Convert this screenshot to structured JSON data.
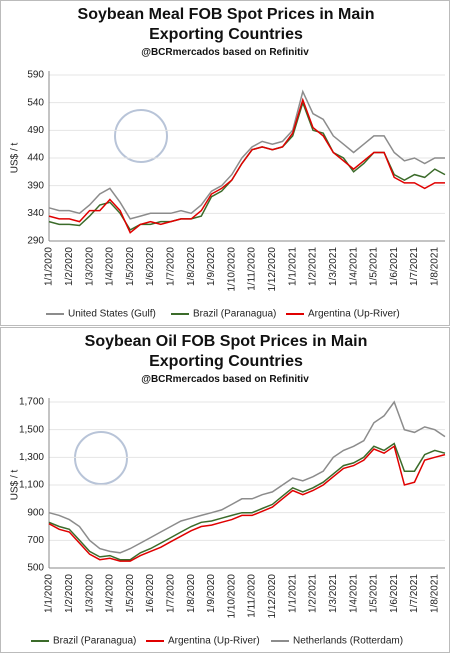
{
  "chart_data": [
    {
      "type": "line",
      "title": "Soybean Meal FOB Spot Prices in Main Exporting Countries",
      "subtitle": "@BCRmercados based on Refinitiv",
      "y_label": "US$ / t",
      "categories": [
        "1/1/2020",
        null,
        "1/2/2020",
        null,
        "1/3/2020",
        null,
        "1/4/2020",
        null,
        "1/5/2020",
        null,
        "1/6/2020",
        null,
        "1/7/2020",
        null,
        "1/8/2020",
        null,
        "1/9/2020",
        null,
        "1/10/2020",
        null,
        "1/11/2020",
        null,
        "1/12/2020",
        null,
        "1/1/2021",
        null,
        "1/2/2021",
        null,
        "1/3/2021",
        null,
        "1/4/2021",
        null,
        "1/5/2021",
        null,
        "1/6/2021",
        null,
        "1/7/2021",
        null,
        "1/8/2021",
        null
      ],
      "ylim": [
        290,
        590
      ],
      "yticks": [
        290,
        340,
        390,
        440,
        490,
        540,
        590
      ],
      "grid": true,
      "series": [
        {
          "name": "United States (Gulf)",
          "color": "#8c8c8c",
          "values": [
            350,
            345,
            345,
            340,
            355,
            375,
            385,
            360,
            330,
            335,
            340,
            340,
            340,
            345,
            340,
            355,
            380,
            390,
            410,
            440,
            460,
            470,
            465,
            470,
            490,
            560,
            520,
            510,
            480,
            465,
            450,
            465,
            480,
            480,
            450,
            435,
            440,
            430,
            440,
            440
          ]
        },
        {
          "name": "Brazil (Paranagua)",
          "color": "#3b6b2a",
          "values": [
            325,
            320,
            320,
            318,
            335,
            355,
            360,
            340,
            310,
            320,
            320,
            325,
            325,
            330,
            330,
            335,
            370,
            380,
            400,
            430,
            455,
            460,
            455,
            460,
            480,
            540,
            490,
            485,
            450,
            440,
            415,
            430,
            450,
            450,
            410,
            400,
            410,
            405,
            420,
            410
          ]
        },
        {
          "name": "Argentina (Up-River)",
          "color": "#e00000",
          "values": [
            335,
            330,
            330,
            325,
            345,
            345,
            365,
            345,
            305,
            320,
            325,
            320,
            325,
            330,
            330,
            345,
            375,
            385,
            400,
            430,
            455,
            460,
            455,
            460,
            485,
            545,
            495,
            480,
            450,
            435,
            420,
            435,
            450,
            450,
            405,
            395,
            395,
            385,
            395,
            395
          ]
        }
      ]
    },
    {
      "type": "line",
      "title": "Soybean Oil FOB Spot Prices in Main Exporting Countries",
      "subtitle": "@BCRmercados based on Refinitiv",
      "y_label": "US$ / t",
      "categories": [
        "1/1/2020",
        null,
        "1/2/2020",
        null,
        "1/3/2020",
        null,
        "1/4/2020",
        null,
        "1/5/2020",
        null,
        "1/6/2020",
        null,
        "1/7/2020",
        null,
        "1/8/2020",
        null,
        "1/9/2020",
        null,
        "1/10/2020",
        null,
        "1/11/2020",
        null,
        "1/12/2020",
        null,
        "1/1/2021",
        null,
        "1/2/2021",
        null,
        "1/3/2021",
        null,
        "1/4/2021",
        null,
        "1/5/2021",
        null,
        "1/6/2021",
        null,
        "1/7/2021",
        null,
        "1/8/2021",
        null
      ],
      "ylim": [
        500,
        1700
      ],
      "yticks": [
        500,
        700,
        900,
        {
          "value": 1100,
          "label": "1,100"
        },
        {
          "value": 1300,
          "label": "1,300"
        },
        {
          "value": 1500,
          "label": "1,500"
        },
        {
          "value": 1700,
          "label": "1,700"
        }
      ],
      "grid": true,
      "series": [
        {
          "name": "Brazil (Paranagua)",
          "color": "#3b6b2a",
          "values": [
            830,
            800,
            780,
            700,
            620,
            580,
            590,
            560,
            560,
            610,
            640,
            680,
            720,
            760,
            800,
            830,
            840,
            860,
            880,
            900,
            900,
            930,
            960,
            1020,
            1080,
            1050,
            1080,
            1120,
            1180,
            1240,
            1260,
            1300,
            1380,
            1350,
            1400,
            1200,
            1200,
            1320,
            1350,
            1330
          ]
        },
        {
          "name": "Argentina (Up-River)",
          "color": "#e00000",
          "values": [
            820,
            780,
            760,
            680,
            600,
            560,
            570,
            550,
            550,
            590,
            620,
            650,
            690,
            730,
            770,
            800,
            810,
            830,
            850,
            880,
            880,
            910,
            940,
            1000,
            1060,
            1030,
            1060,
            1100,
            1160,
            1220,
            1240,
            1280,
            1360,
            1330,
            1380,
            1100,
            1120,
            1280,
            1300,
            1320
          ]
        },
        {
          "name": "Netherlands (Rotterdam)",
          "color": "#8c8c8c",
          "values": [
            900,
            880,
            850,
            800,
            700,
            640,
            620,
            610,
            640,
            680,
            720,
            760,
            800,
            840,
            860,
            880,
            900,
            920,
            960,
            1000,
            1000,
            1030,
            1050,
            1100,
            1150,
            1130,
            1160,
            1200,
            1300,
            1350,
            1380,
            1420,
            1550,
            1600,
            1700,
            1500,
            1480,
            1520,
            1500,
            1450
          ]
        }
      ]
    }
  ]
}
